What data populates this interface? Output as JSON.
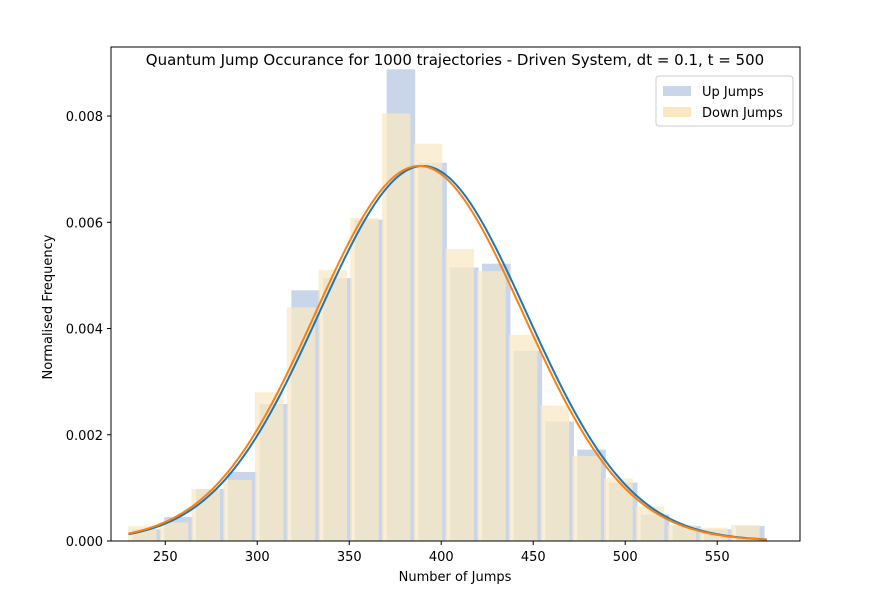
{
  "chart_data": {
    "type": "bar",
    "title": "Quantum Jump Occurance for 1000 trajectories - Driven System, dt = 0.1, t = 500",
    "xlabel": "Number of Jumps",
    "ylabel": "Normalised Frequency",
    "xlim": [
      220.5,
      595
    ],
    "ylim": [
      0,
      0.0093
    ],
    "xticks": [
      "250",
      "300",
      "350",
      "400",
      "450",
      "500",
      "550"
    ],
    "yticks": [
      "0.000",
      "0.002",
      "0.004",
      "0.006",
      "0.008"
    ],
    "grid": false,
    "legend_position": "top-right",
    "colors": {
      "up_bar": "#c9d5e8",
      "down_bar": "#f8e8c6",
      "up_fit": "#1f77b4",
      "down_fit": "#ff7f0e",
      "legend_up_swatch": "#c9d5e8",
      "legend_down_swatch": "#fde7c0"
    },
    "series": [
      {
        "name": "Up Jumps",
        "bar_width": 15.5,
        "bins": [
          {
            "x": 240.0,
            "y": 0.00022
          },
          {
            "x": 257.2,
            "y": 0.00045
          },
          {
            "x": 274.5,
            "y": 0.00098
          },
          {
            "x": 291.8,
            "y": 0.0013
          },
          {
            "x": 309.0,
            "y": 0.00258
          },
          {
            "x": 326.3,
            "y": 0.00472
          },
          {
            "x": 343.6,
            "y": 0.00495
          },
          {
            "x": 360.8,
            "y": 0.00605
          },
          {
            "x": 378.1,
            "y": 0.00888
          },
          {
            "x": 395.3,
            "y": 0.00712
          },
          {
            "x": 412.6,
            "y": 0.00515
          },
          {
            "x": 429.9,
            "y": 0.00522
          },
          {
            "x": 447.1,
            "y": 0.00358
          },
          {
            "x": 464.4,
            "y": 0.00225
          },
          {
            "x": 481.7,
            "y": 0.00172
          },
          {
            "x": 498.9,
            "y": 0.0011
          },
          {
            "x": 516.2,
            "y": 0.0005
          },
          {
            "x": 533.5,
            "y": 0.00028
          },
          {
            "x": 550.7,
            "y": 0.00022
          },
          {
            "x": 568.0,
            "y": 0.00028
          }
        ],
        "fit": {
          "mean": 390,
          "std": 56.5
        }
      },
      {
        "name": "Down Jumps",
        "bar_width": 15.5,
        "bins": [
          {
            "x": 237.5,
            "y": 0.00028
          },
          {
            "x": 254.8,
            "y": 0.00035
          },
          {
            "x": 272.0,
            "y": 0.00098
          },
          {
            "x": 289.3,
            "y": 0.00115
          },
          {
            "x": 306.5,
            "y": 0.0028
          },
          {
            "x": 323.8,
            "y": 0.0044
          },
          {
            "x": 341.0,
            "y": 0.0051
          },
          {
            "x": 358.3,
            "y": 0.00608
          },
          {
            "x": 375.5,
            "y": 0.00805
          },
          {
            "x": 392.8,
            "y": 0.00748
          },
          {
            "x": 410.0,
            "y": 0.0055
          },
          {
            "x": 427.3,
            "y": 0.00508
          },
          {
            "x": 444.5,
            "y": 0.00388
          },
          {
            "x": 461.8,
            "y": 0.00255
          },
          {
            "x": 479.0,
            "y": 0.0016
          },
          {
            "x": 496.3,
            "y": 0.00118
          },
          {
            "x": 513.5,
            "y": 0.00065
          },
          {
            "x": 530.8,
            "y": 0.0003
          },
          {
            "x": 548.0,
            "y": 0.00025
          },
          {
            "x": 565.3,
            "y": 0.0003
          }
        ],
        "fit": {
          "mean": 388,
          "std": 56.5
        }
      }
    ],
    "fit_range": [
      230,
      577
    ]
  }
}
